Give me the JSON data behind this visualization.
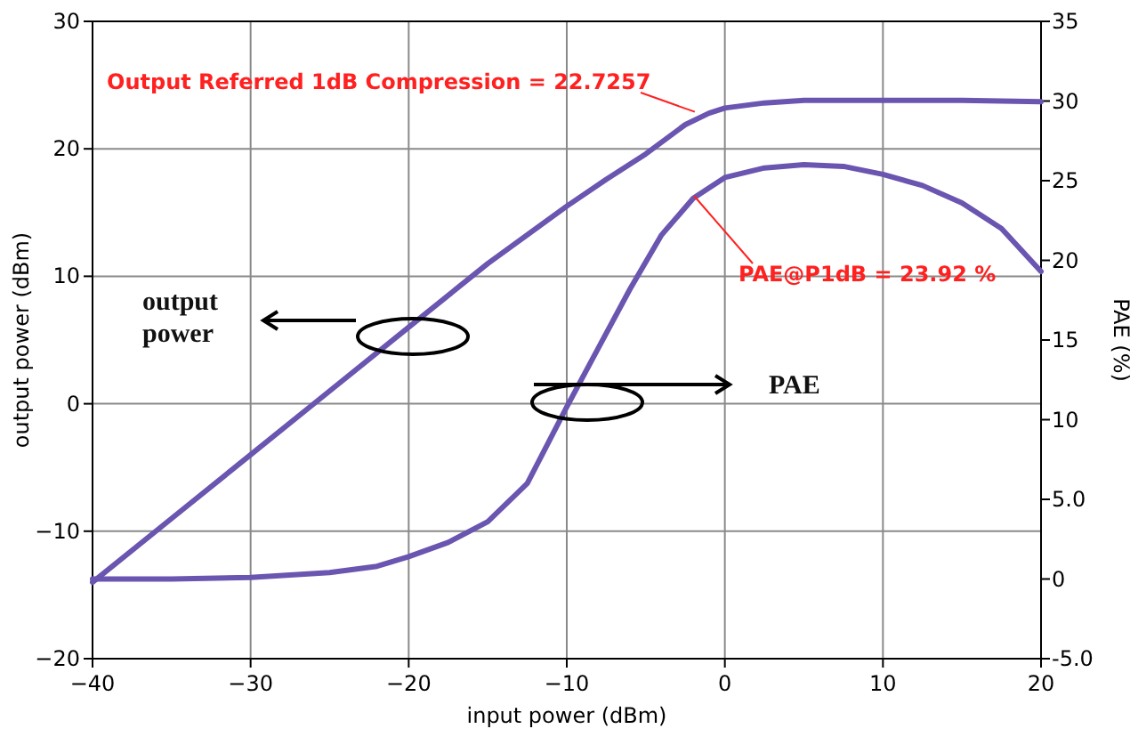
{
  "chart_data": {
    "type": "line",
    "xlabel": "input power (dBm)",
    "ylabel": "output power (dBm)",
    "y2label": "PAE (%)",
    "xlim": [
      -40,
      20
    ],
    "xticks": [
      -40,
      -30,
      -20,
      -10,
      0,
      10,
      20
    ],
    "ylim": [
      -20,
      30
    ],
    "yticks": [
      -20,
      -10,
      0,
      10,
      20,
      30
    ],
    "y2lim": [
      -5,
      35
    ],
    "y2ticks": [
      {
        "value": -5,
        "label": "-5.0"
      },
      0,
      {
        "value": 5,
        "label": "5.0"
      },
      10,
      15,
      20,
      25,
      30,
      35
    ],
    "grid": true,
    "line_style": "solid",
    "marker": "none",
    "series": [
      {
        "color": "#6a55b0",
        "x": [
          -40,
          -35,
          -30,
          -25,
          -20,
          -15,
          -10,
          -7.5,
          -5,
          -2.5,
          -1,
          0,
          2.5,
          5,
          10,
          15,
          20
        ],
        "values": [
          -14,
          -9,
          -4,
          1,
          6,
          11,
          15.5,
          17.6,
          19.6,
          21.9,
          22.8,
          23.2,
          23.6,
          23.8,
          23.8,
          23.8,
          23.7
        ]
      },
      {
        "color": "#6a55b0",
        "axis": "y2",
        "x": [
          -40,
          -35,
          -30,
          -25,
          -22,
          -20,
          -17.5,
          -15,
          -12.5,
          -10,
          -8,
          -6,
          -4,
          -2,
          0,
          2.5,
          5,
          7.5,
          10,
          12.5,
          15,
          17.5,
          20
        ],
        "values": [
          0,
          0,
          0.1,
          0.4,
          0.8,
          1.4,
          2.3,
          3.6,
          6,
          10.8,
          14.5,
          18.2,
          21.6,
          23.9,
          25.2,
          25.8,
          26,
          25.9,
          25.4,
          24.7,
          23.6,
          22,
          19.3
        ]
      }
    ],
    "annotations": [
      {
        "text": "Output Referred 1dB Compression = 22.7257",
        "x": -1.9,
        "y": 22.9
      },
      "PAE@P1dB = 23.92 %",
      "output power",
      "PAE"
    ]
  }
}
